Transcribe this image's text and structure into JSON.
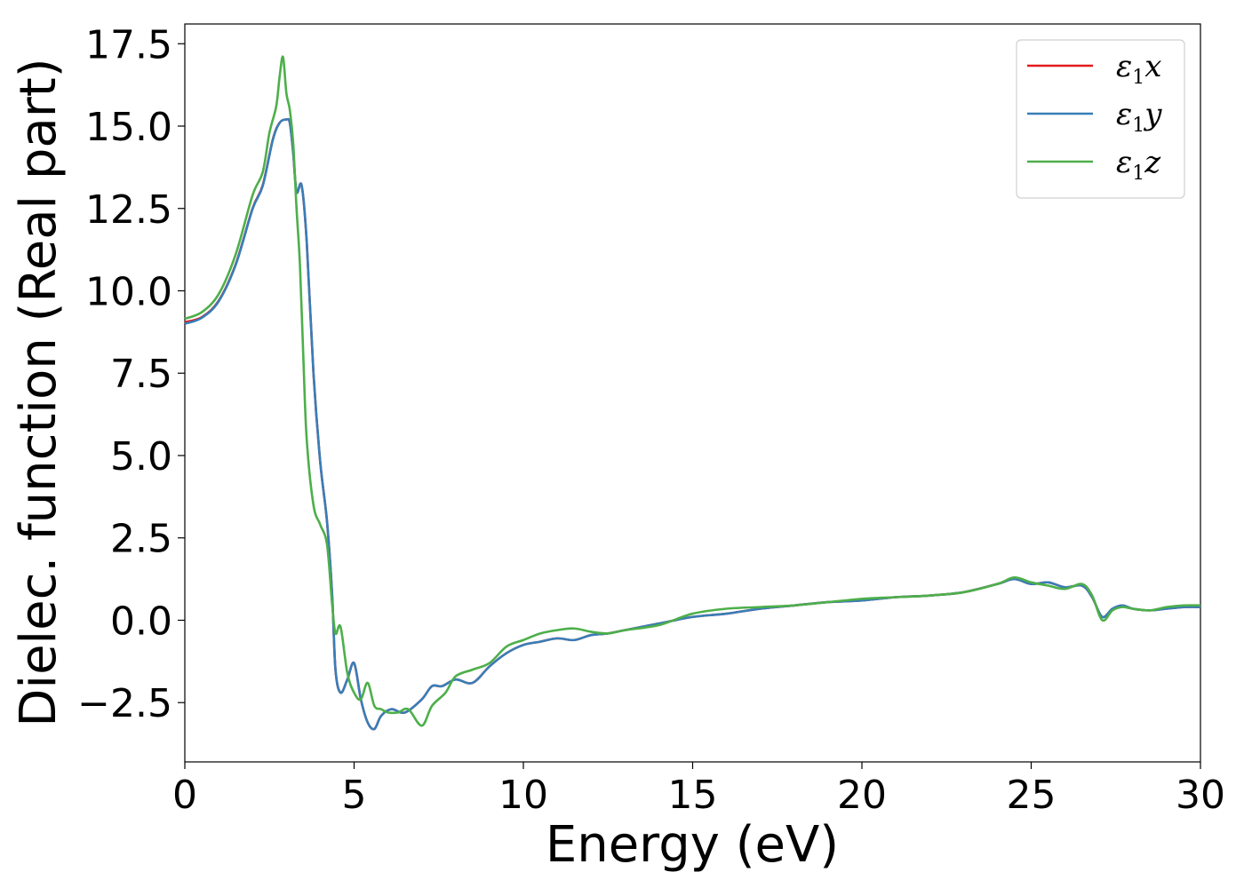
{
  "chart_data": {
    "type": "line",
    "title": "",
    "xlabel": "Energy (eV)",
    "ylabel": "Dielec. function (Real part)",
    "xlim": [
      0,
      30
    ],
    "ylim": [
      -4.3,
      18.1
    ],
    "xticks": [
      0,
      5,
      10,
      15,
      20,
      25,
      30
    ],
    "xtick_labels": [
      "0",
      "5",
      "10",
      "15",
      "20",
      "25",
      "30"
    ],
    "yticks": [
      -2.5,
      0.0,
      2.5,
      5.0,
      7.5,
      10.0,
      12.5,
      15.0,
      17.5
    ],
    "ytick_labels": [
      "−2.5",
      "0.0",
      "2.5",
      "5.0",
      "7.5",
      "10.0",
      "12.5",
      "15.0",
      "17.5"
    ],
    "grid": false,
    "legend_position": "top-right",
    "series": [
      {
        "name": "ε1x",
        "legend": {
          "symbol": "ε",
          "sub": "1",
          "var": "x"
        },
        "color": "#e41a1c",
        "x": [
          0,
          0.5,
          1,
          1.5,
          2,
          2.3,
          2.6,
          2.8,
          3.0,
          3.1,
          3.2,
          3.3,
          3.45,
          3.6,
          3.8,
          4.0,
          4.2,
          4.35,
          4.45,
          4.6,
          4.8,
          5.0,
          5.2,
          5.4,
          5.6,
          5.8,
          6.1,
          6.5,
          7.0,
          7.3,
          7.6,
          8.0,
          8.5,
          9.0,
          9.5,
          10,
          10.5,
          11,
          11.5,
          12,
          12.5,
          13,
          14,
          15,
          16,
          17,
          18,
          19,
          20,
          21,
          22,
          23,
          24,
          24.5,
          25,
          25.5,
          26,
          26.5,
          26.8,
          27.1,
          27.4,
          27.7,
          28,
          28.5,
          29,
          29.5,
          30
        ],
        "y": [
          9.05,
          9.2,
          9.7,
          10.8,
          12.5,
          13.2,
          14.6,
          15.1,
          15.2,
          15.1,
          14.2,
          13.0,
          13.2,
          11.5,
          7.5,
          4.8,
          3.0,
          0.8,
          -1.5,
          -2.2,
          -1.8,
          -1.3,
          -2.4,
          -3.1,
          -3.3,
          -2.9,
          -2.7,
          -2.8,
          -2.4,
          -2.0,
          -2.0,
          -1.8,
          -1.9,
          -1.4,
          -1.0,
          -0.75,
          -0.65,
          -0.55,
          -0.6,
          -0.45,
          -0.4,
          -0.3,
          -0.1,
          0.1,
          0.2,
          0.35,
          0.45,
          0.55,
          0.6,
          0.7,
          0.75,
          0.85,
          1.1,
          1.25,
          1.1,
          1.15,
          1.0,
          1.05,
          0.7,
          0.1,
          0.35,
          0.45,
          0.35,
          0.3,
          0.35,
          0.4,
          0.4
        ]
      },
      {
        "name": "ε1y",
        "legend": {
          "symbol": "ε",
          "sub": "1",
          "var": "y"
        },
        "color": "#377eb8",
        "x": [
          0,
          0.5,
          1,
          1.5,
          2,
          2.3,
          2.6,
          2.8,
          3.0,
          3.1,
          3.2,
          3.3,
          3.45,
          3.6,
          3.8,
          4.0,
          4.2,
          4.35,
          4.45,
          4.6,
          4.8,
          5.0,
          5.2,
          5.4,
          5.6,
          5.8,
          6.1,
          6.5,
          7.0,
          7.3,
          7.6,
          8.0,
          8.5,
          9.0,
          9.5,
          10,
          10.5,
          11,
          11.5,
          12,
          12.5,
          13,
          14,
          15,
          16,
          17,
          18,
          19,
          20,
          21,
          22,
          23,
          24,
          24.5,
          25,
          25.5,
          26,
          26.5,
          26.8,
          27.1,
          27.4,
          27.7,
          28,
          28.5,
          29,
          29.5,
          30
        ],
        "y": [
          9.0,
          9.18,
          9.68,
          10.78,
          12.48,
          13.18,
          14.58,
          15.1,
          15.2,
          15.1,
          14.2,
          13.0,
          13.2,
          11.5,
          7.5,
          4.8,
          3.0,
          0.8,
          -1.5,
          -2.2,
          -1.8,
          -1.3,
          -2.4,
          -3.1,
          -3.3,
          -2.9,
          -2.7,
          -2.8,
          -2.4,
          -2.0,
          -2.0,
          -1.8,
          -1.9,
          -1.4,
          -1.0,
          -0.75,
          -0.65,
          -0.55,
          -0.6,
          -0.45,
          -0.4,
          -0.3,
          -0.1,
          0.1,
          0.2,
          0.35,
          0.45,
          0.55,
          0.6,
          0.7,
          0.75,
          0.85,
          1.1,
          1.25,
          1.1,
          1.15,
          1.0,
          1.05,
          0.7,
          0.1,
          0.35,
          0.45,
          0.35,
          0.3,
          0.35,
          0.4,
          0.4
        ]
      },
      {
        "name": "ε1z",
        "legend": {
          "symbol": "ε",
          "sub": "1",
          "var": "z"
        },
        "color": "#4daf4a",
        "x": [
          0,
          0.5,
          1,
          1.5,
          2,
          2.3,
          2.5,
          2.7,
          2.8,
          2.9,
          3.0,
          3.1,
          3.2,
          3.3,
          3.4,
          3.5,
          3.6,
          3.8,
          4.0,
          4.2,
          4.35,
          4.45,
          4.6,
          4.8,
          5.0,
          5.2,
          5.4,
          5.6,
          5.8,
          6.0,
          6.3,
          6.6,
          7.0,
          7.3,
          7.7,
          8.0,
          8.5,
          9.0,
          9.5,
          10,
          10.5,
          11,
          11.5,
          12,
          12.5,
          13,
          14,
          15,
          16,
          17,
          18,
          19,
          20,
          21,
          22,
          23,
          24,
          24.5,
          25,
          25.5,
          26,
          26.5,
          26.8,
          27.1,
          27.4,
          27.7,
          28,
          28.5,
          29,
          29.5,
          30
        ],
        "y": [
          9.15,
          9.35,
          9.9,
          11.1,
          12.9,
          13.6,
          14.8,
          15.6,
          16.5,
          17.1,
          16.0,
          15.5,
          14.5,
          12.5,
          10.8,
          8.0,
          5.5,
          3.5,
          2.9,
          2.3,
          0.5,
          -0.4,
          -0.2,
          -1.6,
          -2.2,
          -2.4,
          -1.9,
          -2.6,
          -2.7,
          -2.8,
          -2.8,
          -2.7,
          -3.2,
          -2.6,
          -2.2,
          -1.7,
          -1.5,
          -1.3,
          -0.8,
          -0.6,
          -0.4,
          -0.3,
          -0.25,
          -0.35,
          -0.4,
          -0.3,
          -0.15,
          0.2,
          0.35,
          0.4,
          0.45,
          0.55,
          0.65,
          0.7,
          0.75,
          0.85,
          1.1,
          1.3,
          1.15,
          1.05,
          0.95,
          1.1,
          0.75,
          0.0,
          0.3,
          0.4,
          0.35,
          0.3,
          0.4,
          0.45,
          0.45
        ]
      }
    ]
  }
}
